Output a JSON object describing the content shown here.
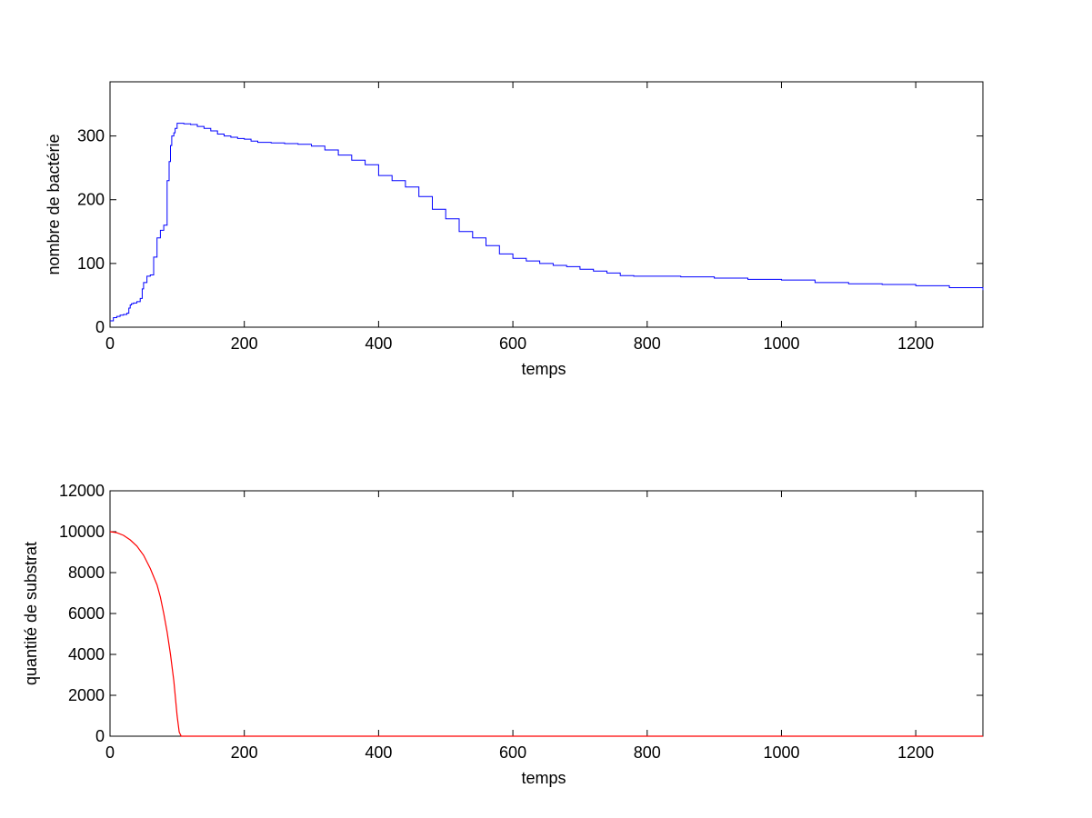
{
  "chart_data": [
    {
      "type": "line",
      "xlabel": "temps",
      "ylabel": "nombre de bactérie",
      "xlim": [
        0,
        1300
      ],
      "ylim": [
        0,
        385
      ],
      "xticks": [
        0,
        200,
        400,
        600,
        800,
        1000,
        1200
      ],
      "xtick_labels": [
        "0",
        "200",
        "400",
        "600",
        "800",
        "1000",
        "1200"
      ],
      "yticks": [
        0,
        100,
        200,
        300
      ],
      "ytick_labels": [
        "0",
        "100",
        "200",
        "300"
      ],
      "grid": false,
      "line_style": "step",
      "color": "#0000ff",
      "series": [
        {
          "x": [
            0,
            5,
            10,
            15,
            20,
            25,
            28,
            30,
            32,
            35,
            40,
            45,
            48,
            50,
            55,
            60,
            65,
            70,
            75,
            80,
            85,
            88,
            90,
            92,
            95,
            97,
            100,
            103,
            105,
            110,
            120,
            130,
            140,
            150,
            160,
            170,
            180,
            190,
            200,
            210,
            220,
            240,
            260,
            280,
            300,
            320,
            340,
            360,
            380,
            400,
            420,
            440,
            460,
            480,
            500,
            520,
            540,
            560,
            580,
            600,
            620,
            640,
            660,
            680,
            700,
            720,
            740,
            760,
            780,
            800,
            850,
            900,
            950,
            1000,
            1050,
            1100,
            1150,
            1200,
            1250,
            1300
          ],
          "y": [
            10,
            15,
            17,
            19,
            20,
            22,
            30,
            35,
            37,
            38,
            40,
            45,
            60,
            70,
            80,
            82,
            110,
            140,
            152,
            160,
            230,
            260,
            285,
            300,
            305,
            312,
            320,
            320,
            320,
            319,
            318,
            315,
            312,
            308,
            303,
            300,
            298,
            296,
            295,
            292,
            290,
            289,
            288,
            287,
            284,
            278,
            270,
            262,
            255,
            238,
            230,
            220,
            205,
            185,
            170,
            150,
            140,
            128,
            115,
            108,
            104,
            100,
            97,
            95,
            91,
            88,
            85,
            81,
            80,
            80,
            79,
            77,
            75,
            74,
            70,
            68,
            67,
            65,
            62,
            58
          ]
        }
      ]
    },
    {
      "type": "line",
      "xlabel": "temps",
      "ylabel": "quantité de substrat",
      "xlim": [
        0,
        1300
      ],
      "ylim": [
        0,
        12000
      ],
      "xticks": [
        0,
        200,
        400,
        600,
        800,
        1000,
        1200
      ],
      "xtick_labels": [
        "0",
        "200",
        "400",
        "600",
        "800",
        "1000",
        "1200"
      ],
      "yticks": [
        0,
        2000,
        4000,
        6000,
        8000,
        10000,
        12000
      ],
      "ytick_labels": [
        "0",
        "2000",
        "4000",
        "6000",
        "8000",
        "10000",
        "12000"
      ],
      "grid": false,
      "line_style": "solid",
      "color": "#ff0000",
      "series": [
        {
          "x": [
            0,
            10,
            20,
            30,
            40,
            50,
            60,
            70,
            75,
            80,
            85,
            90,
            95,
            100,
            103,
            106,
            108,
            110,
            150,
            200,
            400,
            600,
            800,
            1000,
            1200,
            1300
          ],
          "y": [
            10000,
            9950,
            9820,
            9600,
            9300,
            8850,
            8200,
            7400,
            6800,
            6000,
            5100,
            4000,
            2700,
            1000,
            200,
            0,
            0,
            0,
            0,
            0,
            0,
            0,
            0,
            0,
            0,
            0
          ]
        }
      ]
    }
  ]
}
